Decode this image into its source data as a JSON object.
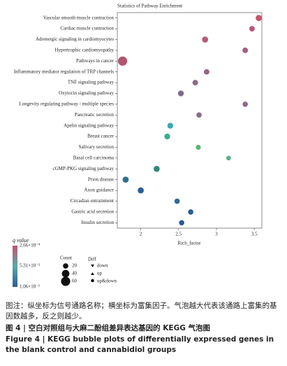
{
  "chart_data": {
    "type": "scatter",
    "title": "Statistics of Pathway Enrichment",
    "x_label": "Rich_factor",
    "categories": [
      "Vascular smooth muscle contraction",
      "Cardiac muscle contraction",
      "Adrenergic signaling in cardiomyocytes",
      "Hypertrophic cardiomyopathy",
      "Pathways in cancer",
      "Inflammatory mediator regulation of TRP channels",
      "TNF signaling pathway",
      "Oxytocin signaling pathway",
      "Longevity regulating pathway - multiple species",
      "Pancreatic secretion",
      "Apelin signaling pathway",
      "Breast cancer",
      "Salivary secretion",
      "Basal cell carcinoma",
      "cGMP-PKG signaling pathway",
      "Prion disease",
      "Axon guidance",
      "Circadian entrainment",
      "Gastric acid secretion",
      "Insulin secretion"
    ],
    "x": [
      3.56,
      3.47,
      2.85,
      3.38,
      1.76,
      2.87,
      2.72,
      2.53,
      3.38,
      2.77,
      2.39,
      2.35,
      2.76,
      3.16,
      2.21,
      1.8,
      2.0,
      2.48,
      2.66,
      2.54
    ],
    "sizes": [
      28,
      22,
      26,
      22,
      60,
      22,
      22,
      24,
      20,
      20,
      24,
      24,
      18,
      16,
      26,
      26,
      26,
      20,
      20,
      20
    ],
    "colors": [
      "#c4566e",
      "#b8587a",
      "#b45a7e",
      "#a85c82",
      "#b0566c",
      "#9a6285",
      "#8e6888",
      "#7e6c8a",
      "#8a6a88",
      "#8a6a88",
      "#3aa8b0",
      "#3cab8e",
      "#5cb47a",
      "#58b488",
      "#2e8a7a",
      "#2a7290",
      "#285e98",
      "#2c6a96",
      "#2a5c96",
      "#285898"
    ],
    "xlim": [
      1.69,
      3.6
    ],
    "xticks": [
      2,
      2.5,
      3,
      3.5
    ],
    "color_legend": {
      "title": "q value",
      "colors": [
        "#c2546c",
        "#5aaaa8",
        "#2a5c9a"
      ],
      "clim": [
        0.000266,
        0.0106
      ],
      "ticks": [
        {
          "value": 0.000266,
          "label": "2.66×10⁻⁴"
        },
        {
          "value": 0.00531,
          "label": "5.31×10⁻³"
        },
        {
          "value": 0.0106,
          "label": "1.06×10⁻²"
        }
      ]
    },
    "size_legend": {
      "title": "Count",
      "values": [
        20,
        40,
        60
      ]
    },
    "shape_legend": {
      "title": "Diff",
      "items": [
        "down",
        "up",
        "up&down"
      ]
    }
  },
  "caption": {
    "note": "图注：纵坐标为信号通路名称；横坐标为富集因子。气泡越大代表该通路上富集的基因数越多，反之则越少。",
    "title_cn": "图 4  |  空白对照组与大麻二酚组差异表达基因的 KEGG 气泡图",
    "title_en": "Figure 4  |  KEGG bubble plots of differentially expressed genes in the blank control and cannabidiol groups"
  }
}
